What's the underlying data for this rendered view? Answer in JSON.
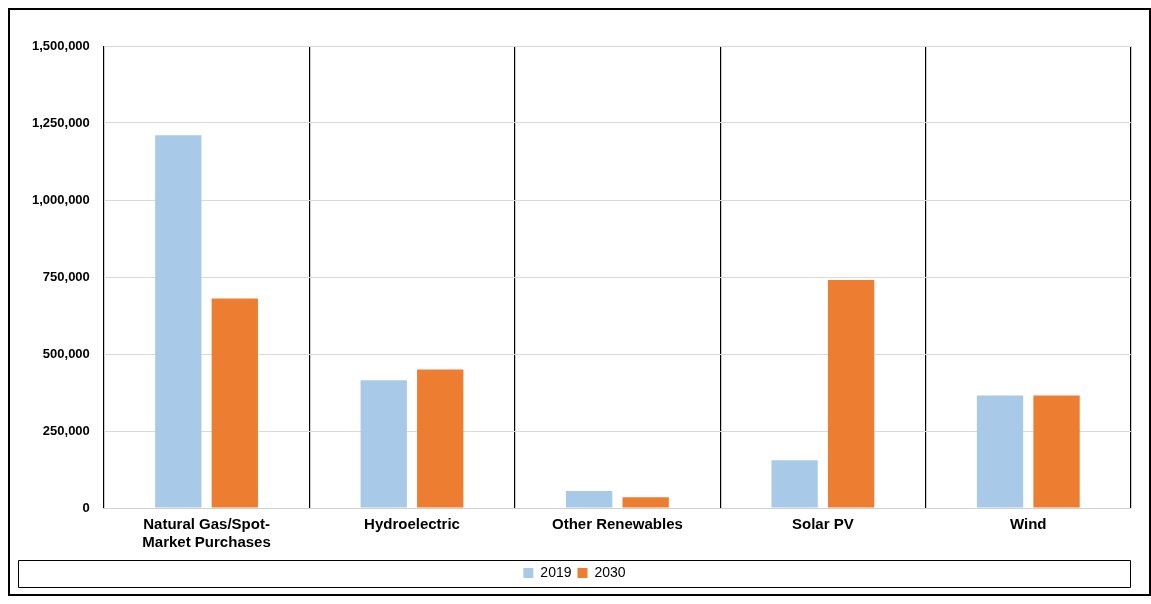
{
  "chart_data": {
    "type": "bar",
    "categories": [
      "Natural Gas/Spot-Market Purchases",
      "Hydroelectric",
      "Other Renewables",
      "Solar PV",
      "Wind"
    ],
    "series": [
      {
        "name": "2019",
        "color": "#a9c9e8",
        "values": [
          1210000,
          415000,
          55000,
          155000,
          365000
        ]
      },
      {
        "name": "2030",
        "color": "#ed7d31",
        "values": [
          680000,
          450000,
          35000,
          740000,
          365000
        ]
      }
    ],
    "ylim": [
      0,
      1500000
    ],
    "yticks": [
      {
        "value": 0,
        "label": "0"
      },
      {
        "value": 250000,
        "label": "250,000"
      },
      {
        "value": 500000,
        "label": "500,000"
      },
      {
        "value": 750000,
        "label": "750,000"
      },
      {
        "value": 1000000,
        "label": "1,000,000"
      },
      {
        "value": 1250000,
        "label": "1,250,000"
      },
      {
        "value": 1500000,
        "label": "1,500,000"
      }
    ],
    "grid": true,
    "legend": "bottom"
  }
}
